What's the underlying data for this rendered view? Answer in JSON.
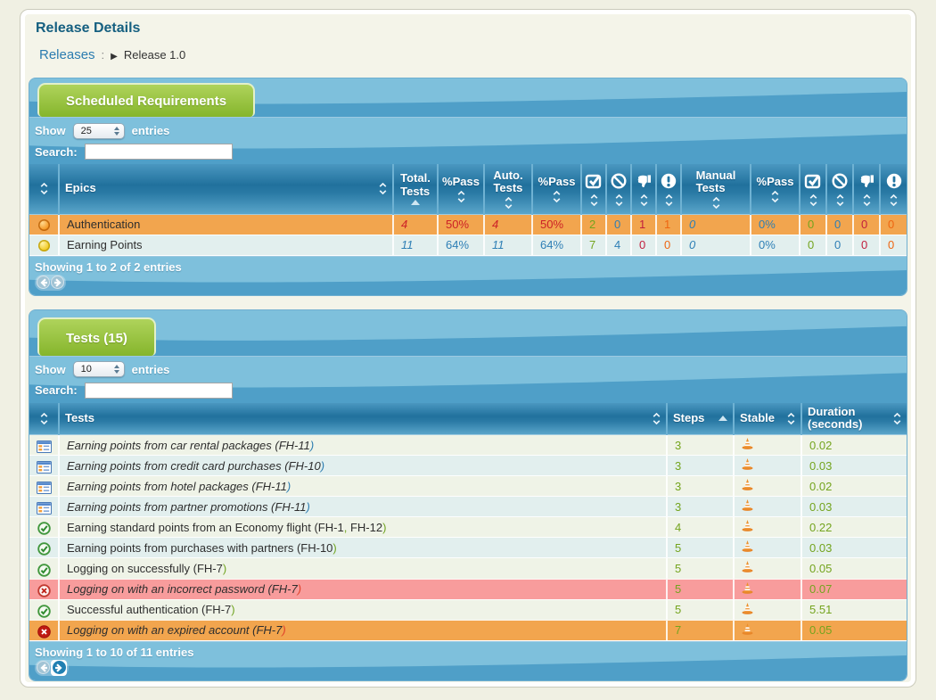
{
  "page": {
    "title": "Release Details",
    "breadcrumb": {
      "root": "Releases",
      "separator": ":",
      "arrow": "▶",
      "current": "Release 1.0"
    }
  },
  "colors": {
    "accent_blue": "#2b7cb0",
    "accent_green": "#70a421",
    "accent_red": "#e0402a",
    "num_green": "#74a41e",
    "num_blue": "#2e7fb5",
    "num_darkred": "#c11f3e",
    "num_orange": "#ee6611",
    "pct_red": "#cc2127",
    "row_orange": "#f2a54e",
    "row_pink": "#f89c9c",
    "row_odd": "#eff3e7",
    "row_even": "#e2efee"
  },
  "requirements": {
    "tab_label": "Scheduled Requirements",
    "show_label": "Show",
    "show_value": "25",
    "entries_label": "entries",
    "search_label": "Search:",
    "search_value": "",
    "columns": [
      {
        "type": "sort-only"
      },
      {
        "label": "Epics",
        "type": "name"
      },
      {
        "label": "Total. Tests",
        "type": "two-line",
        "sorted": "asc"
      },
      {
        "label": "%Pass",
        "type": "stack"
      },
      {
        "label": "Auto. Tests",
        "type": "two-line"
      },
      {
        "label": "%Pass",
        "type": "stack"
      },
      {
        "icon": "checkbox-icon",
        "type": "icon"
      },
      {
        "icon": "no-entry-icon",
        "type": "icon"
      },
      {
        "icon": "thumbs-down-icon",
        "type": "icon"
      },
      {
        "icon": "exclamation-icon",
        "type": "icon"
      },
      {
        "label": "Manual Tests",
        "type": "two-line"
      },
      {
        "label": "%Pass",
        "type": "stack"
      },
      {
        "icon": "checkbox-icon",
        "type": "icon"
      },
      {
        "icon": "no-entry-icon",
        "type": "icon"
      },
      {
        "icon": "thumbs-down-icon",
        "type": "icon"
      },
      {
        "icon": "exclamation-icon",
        "type": "icon"
      }
    ],
    "rows": [
      {
        "status": "orange",
        "bg": "row_orange",
        "epic": "Authentication",
        "cells": [
          {
            "v": "4",
            "c": "pct_red",
            "i": true
          },
          {
            "v": "50%",
            "c": "pct_red"
          },
          {
            "v": "4",
            "c": "pct_red",
            "i": true
          },
          {
            "v": "50%",
            "c": "pct_red"
          },
          {
            "v": "2",
            "c": "num_green"
          },
          {
            "v": "0",
            "c": "num_blue"
          },
          {
            "v": "1",
            "c": "num_darkred"
          },
          {
            "v": "1",
            "c": "num_orange"
          },
          {
            "v": "0",
            "c": "num_blue",
            "i": true
          },
          {
            "v": "0%",
            "c": "num_blue"
          },
          {
            "v": "0",
            "c": "num_green"
          },
          {
            "v": "0",
            "c": "num_blue"
          },
          {
            "v": "0",
            "c": "num_darkred"
          },
          {
            "v": "0",
            "c": "num_orange"
          }
        ]
      },
      {
        "status": "yellow",
        "bg": "row_even",
        "epic": "Earning Points",
        "cells": [
          {
            "v": "11",
            "c": "num_blue",
            "i": true
          },
          {
            "v": "64%",
            "c": "num_blue"
          },
          {
            "v": "11",
            "c": "num_blue",
            "i": true
          },
          {
            "v": "64%",
            "c": "num_blue"
          },
          {
            "v": "7",
            "c": "num_green"
          },
          {
            "v": "4",
            "c": "num_blue"
          },
          {
            "v": "0",
            "c": "num_darkred"
          },
          {
            "v": "0",
            "c": "num_orange"
          },
          {
            "v": "0",
            "c": "num_blue",
            "i": true
          },
          {
            "v": "0%",
            "c": "num_blue"
          },
          {
            "v": "0",
            "c": "num_green"
          },
          {
            "v": "0",
            "c": "num_blue"
          },
          {
            "v": "0",
            "c": "num_darkred"
          },
          {
            "v": "0",
            "c": "num_orange"
          }
        ]
      }
    ],
    "footer_info": "Showing 1 to 2 of 2 entries",
    "pager": {
      "prev_enabled": false,
      "next_enabled": false
    }
  },
  "tests": {
    "tab_label": "Tests (15)",
    "show_label": "Show",
    "show_value": "10",
    "entries_label": "entries",
    "search_label": "Search:",
    "search_value": "",
    "columns": [
      {
        "type": "sort-only"
      },
      {
        "label": "Tests",
        "type": "name"
      },
      {
        "label": "Steps",
        "type": "inline",
        "sorted": "asc"
      },
      {
        "label": "Stable",
        "type": "inline"
      },
      {
        "label": "Duration (seconds)",
        "type": "two-line-inline"
      }
    ],
    "rows": [
      {
        "icon": "spreadsheet-icon",
        "italic": true,
        "bg": "row_odd",
        "segments": [
          {
            "t": "Earning points from car rental packages (FH-11",
            "c": "text"
          },
          {
            "t": ")",
            "c": "blue"
          }
        ],
        "steps": "3",
        "stable": "cone-icon",
        "duration": "0.02"
      },
      {
        "icon": "spreadsheet-icon",
        "italic": true,
        "bg": "row_even",
        "segments": [
          {
            "t": "Earning points from credit card purchases (FH-10",
            "c": "text"
          },
          {
            "t": ")",
            "c": "blue"
          }
        ],
        "steps": "3",
        "stable": "cone-icon",
        "duration": "0.03"
      },
      {
        "icon": "spreadsheet-icon",
        "italic": true,
        "bg": "row_odd",
        "segments": [
          {
            "t": "Earning points from hotel packages (FH-11",
            "c": "text"
          },
          {
            "t": ")",
            "c": "blue"
          }
        ],
        "steps": "3",
        "stable": "cone-icon",
        "duration": "0.02"
      },
      {
        "icon": "spreadsheet-icon",
        "italic": true,
        "bg": "row_even",
        "segments": [
          {
            "t": "Earning points from partner promotions (FH-11",
            "c": "text"
          },
          {
            "t": ")",
            "c": "blue"
          }
        ],
        "steps": "3",
        "stable": "cone-icon",
        "duration": "0.03"
      },
      {
        "icon": "pass-icon",
        "italic": false,
        "bg": "row_odd",
        "segments": [
          {
            "t": "Earning standard points from an Economy flight (FH-1",
            "c": "text"
          },
          {
            "t": ",",
            "c": "green"
          },
          {
            "t": " FH-12",
            "c": "text"
          },
          {
            "t": ")",
            "c": "green"
          }
        ],
        "steps": "4",
        "stable": "cone-icon",
        "duration": "0.22"
      },
      {
        "icon": "pass-icon",
        "italic": false,
        "bg": "row_even",
        "segments": [
          {
            "t": "Earning points from purchases with partners (FH-10",
            "c": "text"
          },
          {
            "t": ")",
            "c": "green"
          }
        ],
        "steps": "5",
        "stable": "cone-icon",
        "duration": "0.03"
      },
      {
        "icon": "pass-icon",
        "italic": false,
        "bg": "row_odd",
        "segments": [
          {
            "t": "Logging on successfully (FH-7",
            "c": "text"
          },
          {
            "t": ")",
            "c": "green"
          }
        ],
        "steps": "5",
        "stable": "cone-icon",
        "duration": "0.05"
      },
      {
        "icon": "fail-ring-icon",
        "italic": true,
        "bg": "row_pink",
        "segments": [
          {
            "t": "Logging on with an incorrect password (FH-7",
            "c": "text"
          },
          {
            "t": ")",
            "c": "red"
          }
        ],
        "steps": "5",
        "stable": "cone-icon",
        "duration": "0.07"
      },
      {
        "icon": "pass-icon",
        "italic": false,
        "bg": "row_odd",
        "segments": [
          {
            "t": "Successful authentication (FH-7",
            "c": "text"
          },
          {
            "t": ")",
            "c": "green"
          }
        ],
        "steps": "5",
        "stable": "cone-icon",
        "duration": "5.51"
      },
      {
        "icon": "fail-solid-icon",
        "italic": true,
        "bg": "row_orange",
        "segments": [
          {
            "t": "Logging on with an expired account (FH-7",
            "c": "text"
          },
          {
            "t": ")",
            "c": "red"
          }
        ],
        "steps": "7",
        "stable": "cone-icon",
        "duration": "0.05"
      }
    ],
    "footer_info": "Showing 1 to 10 of 11 entries",
    "pager": {
      "prev_enabled": false,
      "next_enabled": true
    }
  }
}
